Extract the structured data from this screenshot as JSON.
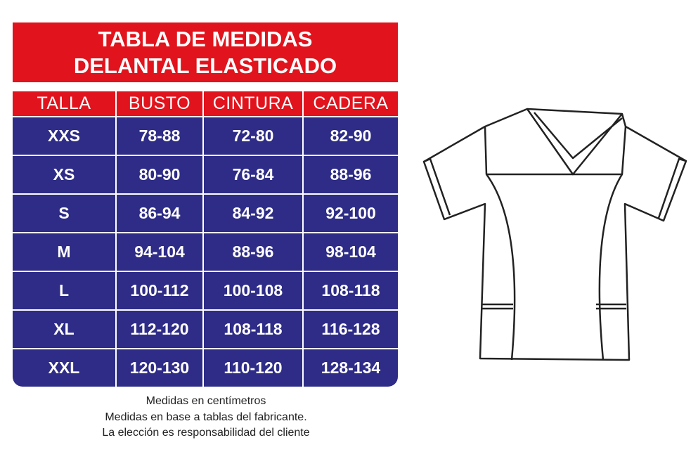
{
  "header": {
    "title": [
      "TABLA DE MEDIDAS",
      "DELANTAL ELASTICADO"
    ]
  },
  "table": {
    "columns": [
      "TALLA",
      "BUSTO",
      "CINTURA",
      "CADERA"
    ],
    "rows": [
      [
        "XXS",
        "78-88",
        "72-80",
        "82-90"
      ],
      [
        "XS",
        "80-90",
        "76-84",
        "88-96"
      ],
      [
        "S",
        "86-94",
        "84-92",
        "92-100"
      ],
      [
        "M",
        "94-104",
        "88-96",
        "98-104"
      ],
      [
        "L",
        "100-112",
        "100-108",
        "108-118"
      ],
      [
        "XL",
        "112-120",
        "108-118",
        "116-128"
      ],
      [
        "XXL",
        "120-130",
        "110-120",
        "128-134"
      ]
    ]
  },
  "notes": [
    "Medidas en centímetros",
    "Medidas en base a tablas del fabricante.",
    "La elección es responsabilidad del cliente"
  ]
}
